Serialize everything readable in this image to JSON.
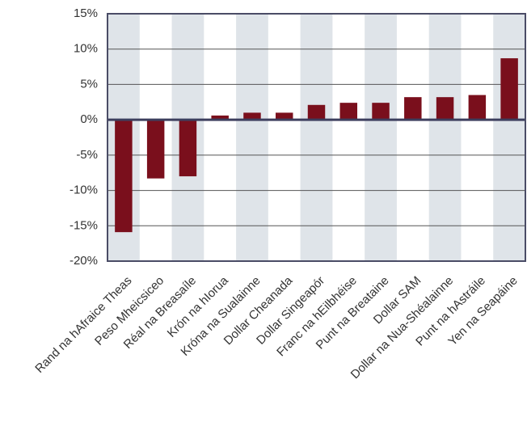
{
  "chart_data": {
    "type": "bar",
    "categories": [
      "Rand na hAfraice Theas",
      "Peso Mheicsiceo",
      "Réal na Breasaíle",
      "Krón na hIorua",
      "Króna na Sualainne",
      "Dollar Cheanada",
      "Dollar Singeapór",
      "Franc na hEilbhéise",
      "Punt na Breataine",
      "Dollar SAM",
      "Dollar na Nua-Shéalainne",
      "Punt na hAstráile",
      "Yen na Seapáine"
    ],
    "values": [
      -15.9,
      -8.3,
      -8.0,
      0.6,
      1.0,
      1.0,
      2.1,
      2.4,
      2.4,
      3.2,
      3.2,
      3.5,
      8.7
    ],
    "color": "#7a0f1c",
    "ylim": [
      -20,
      15
    ],
    "yticks": [
      {
        "value": -20,
        "label": "-20%"
      },
      {
        "value": -15,
        "label": "-15%"
      },
      {
        "value": -10,
        "label": "-10%"
      },
      {
        "value": -5,
        "label": "-5%"
      },
      {
        "value": 0,
        "label": "0%"
      },
      {
        "value": 5,
        "label": "5%"
      },
      {
        "value": 10,
        "label": "10%"
      },
      {
        "value": 15,
        "label": "15%"
      }
    ],
    "grid": true
  }
}
